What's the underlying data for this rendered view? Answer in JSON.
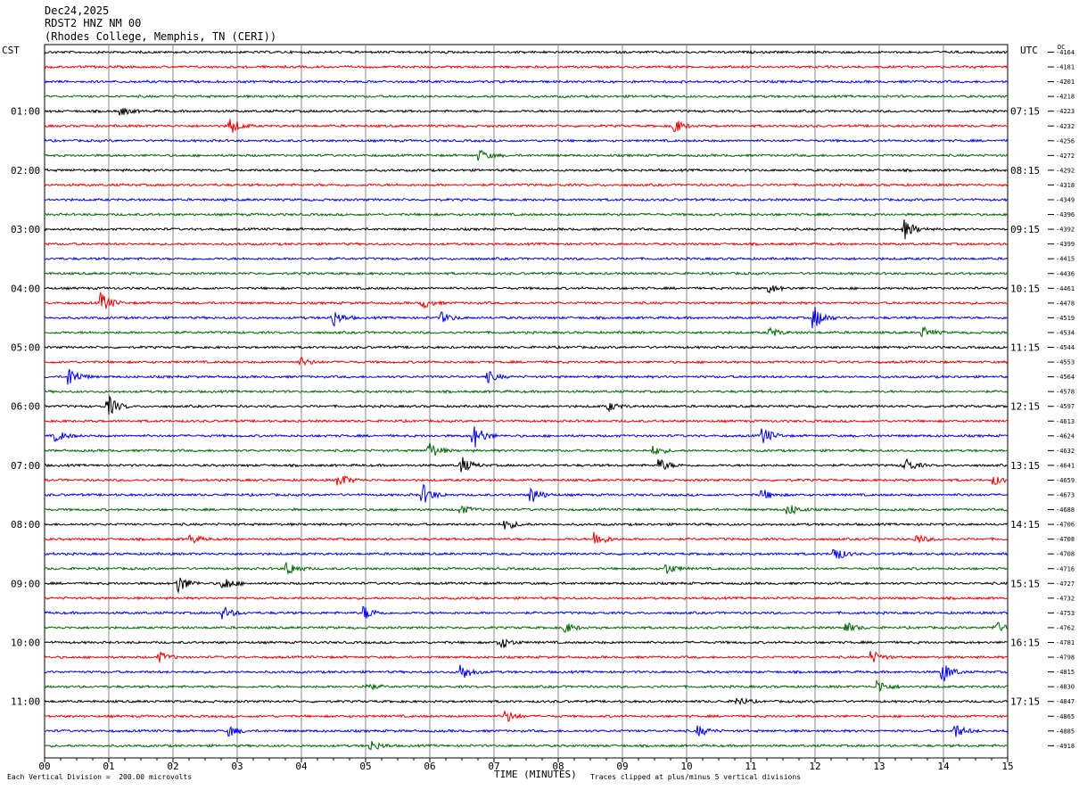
{
  "header": {
    "date": "Dec24,2025",
    "station": "RDST2 HNZ NM 00",
    "location": "(Rhodes College, Memphis, TN (CERI))"
  },
  "corners": {
    "left": "CST",
    "right": "UTC",
    "dc": "DC"
  },
  "colors": {
    "cycle": [
      "#000000",
      "#ee0000",
      "#0000ee",
      "#006600"
    ],
    "grid": "#888888"
  },
  "chart_data": {
    "type": "line",
    "xlabel": "TIME (MINUTES)",
    "xlim": [
      0,
      15
    ],
    "xticks": [
      "00",
      "01",
      "02",
      "03",
      "04",
      "05",
      "06",
      "07",
      "08",
      "09",
      "10",
      "11",
      "12",
      "13",
      "14",
      "15"
    ],
    "left_labels": [
      "01:00",
      "02:00",
      "03:00",
      "04:00",
      "05:00",
      "06:00",
      "07:00",
      "08:00",
      "09:00",
      "10:00",
      "11:00"
    ],
    "right_labels": [
      "07:15",
      "08:15",
      "09:15",
      "10:15",
      "11:15",
      "12:15",
      "13:15",
      "14:15",
      "15:15",
      "16:15",
      "17:15"
    ],
    "dc_offsets": [
      "-4164",
      "-4181",
      "-4201",
      "-4218",
      "-4223",
      "-4232",
      "-4256",
      "-4272",
      "-4292",
      "-4318",
      "-4349",
      "-4396",
      "-4392",
      "-4399",
      "-4415",
      "-4436",
      "-4461",
      "-4478",
      "-4519",
      "-4534",
      "-4544",
      "-4553",
      "-4564",
      "-4578",
      "-4597",
      "-4613",
      "-4624",
      "-4632",
      "-4641",
      "-4659",
      "-4673",
      "-4688",
      "-4706",
      "-4708",
      "-4708",
      "-4716",
      "-4727",
      "-4732",
      "-4753",
      "-4762",
      "-4781",
      "-4798",
      "-4815",
      "-4830",
      "-4847",
      "-4865",
      "-4885",
      "-4918"
    ],
    "trace_count": 48,
    "events": [
      {
        "trace": 4,
        "minute": 1.2,
        "amp": 0.5
      },
      {
        "trace": 5,
        "minute": 2.9,
        "amp": 1.0
      },
      {
        "trace": 5,
        "minute": 9.8,
        "amp": 1.0
      },
      {
        "trace": 7,
        "minute": 6.8,
        "amp": 0.6
      },
      {
        "trace": 12,
        "minute": 13.4,
        "amp": 1.2
      },
      {
        "trace": 16,
        "minute": 11.3,
        "amp": 0.5
      },
      {
        "trace": 17,
        "minute": 0.9,
        "amp": 1.2
      },
      {
        "trace": 17,
        "minute": 5.9,
        "amp": 0.6
      },
      {
        "trace": 18,
        "minute": 4.5,
        "amp": 1.0
      },
      {
        "trace": 18,
        "minute": 6.2,
        "amp": 0.6
      },
      {
        "trace": 18,
        "minute": 12.0,
        "amp": 1.3
      },
      {
        "trace": 19,
        "minute": 11.3,
        "amp": 0.6
      },
      {
        "trace": 19,
        "minute": 13.7,
        "amp": 0.6
      },
      {
        "trace": 21,
        "minute": 4.0,
        "amp": 0.5
      },
      {
        "trace": 22,
        "minute": 0.4,
        "amp": 1.2
      },
      {
        "trace": 22,
        "minute": 6.9,
        "amp": 0.7
      },
      {
        "trace": 24,
        "minute": 1.0,
        "amp": 1.2
      },
      {
        "trace": 24,
        "minute": 8.8,
        "amp": 0.5
      },
      {
        "trace": 26,
        "minute": 0.2,
        "amp": 0.6
      },
      {
        "trace": 26,
        "minute": 6.7,
        "amp": 1.4
      },
      {
        "trace": 26,
        "minute": 11.2,
        "amp": 1.0
      },
      {
        "trace": 27,
        "minute": 6.0,
        "amp": 1.0
      },
      {
        "trace": 27,
        "minute": 9.5,
        "amp": 0.5
      },
      {
        "trace": 28,
        "minute": 6.5,
        "amp": 1.0
      },
      {
        "trace": 28,
        "minute": 9.6,
        "amp": 0.7
      },
      {
        "trace": 28,
        "minute": 13.4,
        "amp": 1.0
      },
      {
        "trace": 29,
        "minute": 4.6,
        "amp": 0.8
      },
      {
        "trace": 29,
        "minute": 14.8,
        "amp": 0.5
      },
      {
        "trace": 30,
        "minute": 5.9,
        "amp": 1.2
      },
      {
        "trace": 30,
        "minute": 7.6,
        "amp": 1.0
      },
      {
        "trace": 30,
        "minute": 11.2,
        "amp": 0.6
      },
      {
        "trace": 31,
        "minute": 11.6,
        "amp": 0.7
      },
      {
        "trace": 31,
        "minute": 6.5,
        "amp": 0.5
      },
      {
        "trace": 32,
        "minute": 7.2,
        "amp": 0.6
      },
      {
        "trace": 33,
        "minute": 8.6,
        "amp": 0.9
      },
      {
        "trace": 33,
        "minute": 2.3,
        "amp": 0.5
      },
      {
        "trace": 33,
        "minute": 13.6,
        "amp": 0.5
      },
      {
        "trace": 34,
        "minute": 12.3,
        "amp": 1.0
      },
      {
        "trace": 35,
        "minute": 3.8,
        "amp": 0.8
      },
      {
        "trace": 35,
        "minute": 9.7,
        "amp": 0.6
      },
      {
        "trace": 36,
        "minute": 2.1,
        "amp": 1.1
      },
      {
        "trace": 36,
        "minute": 2.8,
        "amp": 0.8
      },
      {
        "trace": 38,
        "minute": 2.8,
        "amp": 0.7
      },
      {
        "trace": 38,
        "minute": 5.0,
        "amp": 0.8
      },
      {
        "trace": 39,
        "minute": 8.1,
        "amp": 0.7
      },
      {
        "trace": 39,
        "minute": 12.5,
        "amp": 0.6
      },
      {
        "trace": 39,
        "minute": 14.8,
        "amp": 0.8
      },
      {
        "trace": 40,
        "minute": 7.1,
        "amp": 0.8
      },
      {
        "trace": 41,
        "minute": 1.8,
        "amp": 0.6
      },
      {
        "trace": 41,
        "minute": 12.9,
        "amp": 0.7
      },
      {
        "trace": 42,
        "minute": 6.5,
        "amp": 1.0
      },
      {
        "trace": 42,
        "minute": 14.0,
        "amp": 1.2
      },
      {
        "trace": 43,
        "minute": 13.0,
        "amp": 0.7
      },
      {
        "trace": 43,
        "minute": 5.0,
        "amp": 0.5
      },
      {
        "trace": 44,
        "minute": 10.8,
        "amp": 0.5
      },
      {
        "trace": 45,
        "minute": 7.2,
        "amp": 0.7
      },
      {
        "trace": 46,
        "minute": 2.9,
        "amp": 0.6
      },
      {
        "trace": 46,
        "minute": 14.2,
        "amp": 0.8
      },
      {
        "trace": 46,
        "minute": 10.2,
        "amp": 0.6
      },
      {
        "trace": 47,
        "minute": 5.1,
        "amp": 0.6
      }
    ]
  },
  "footer": {
    "left": "Each Vertical Division =  200.00 microvolts",
    "right": "Traces clipped at plus/minus 5 vertical divisions"
  }
}
